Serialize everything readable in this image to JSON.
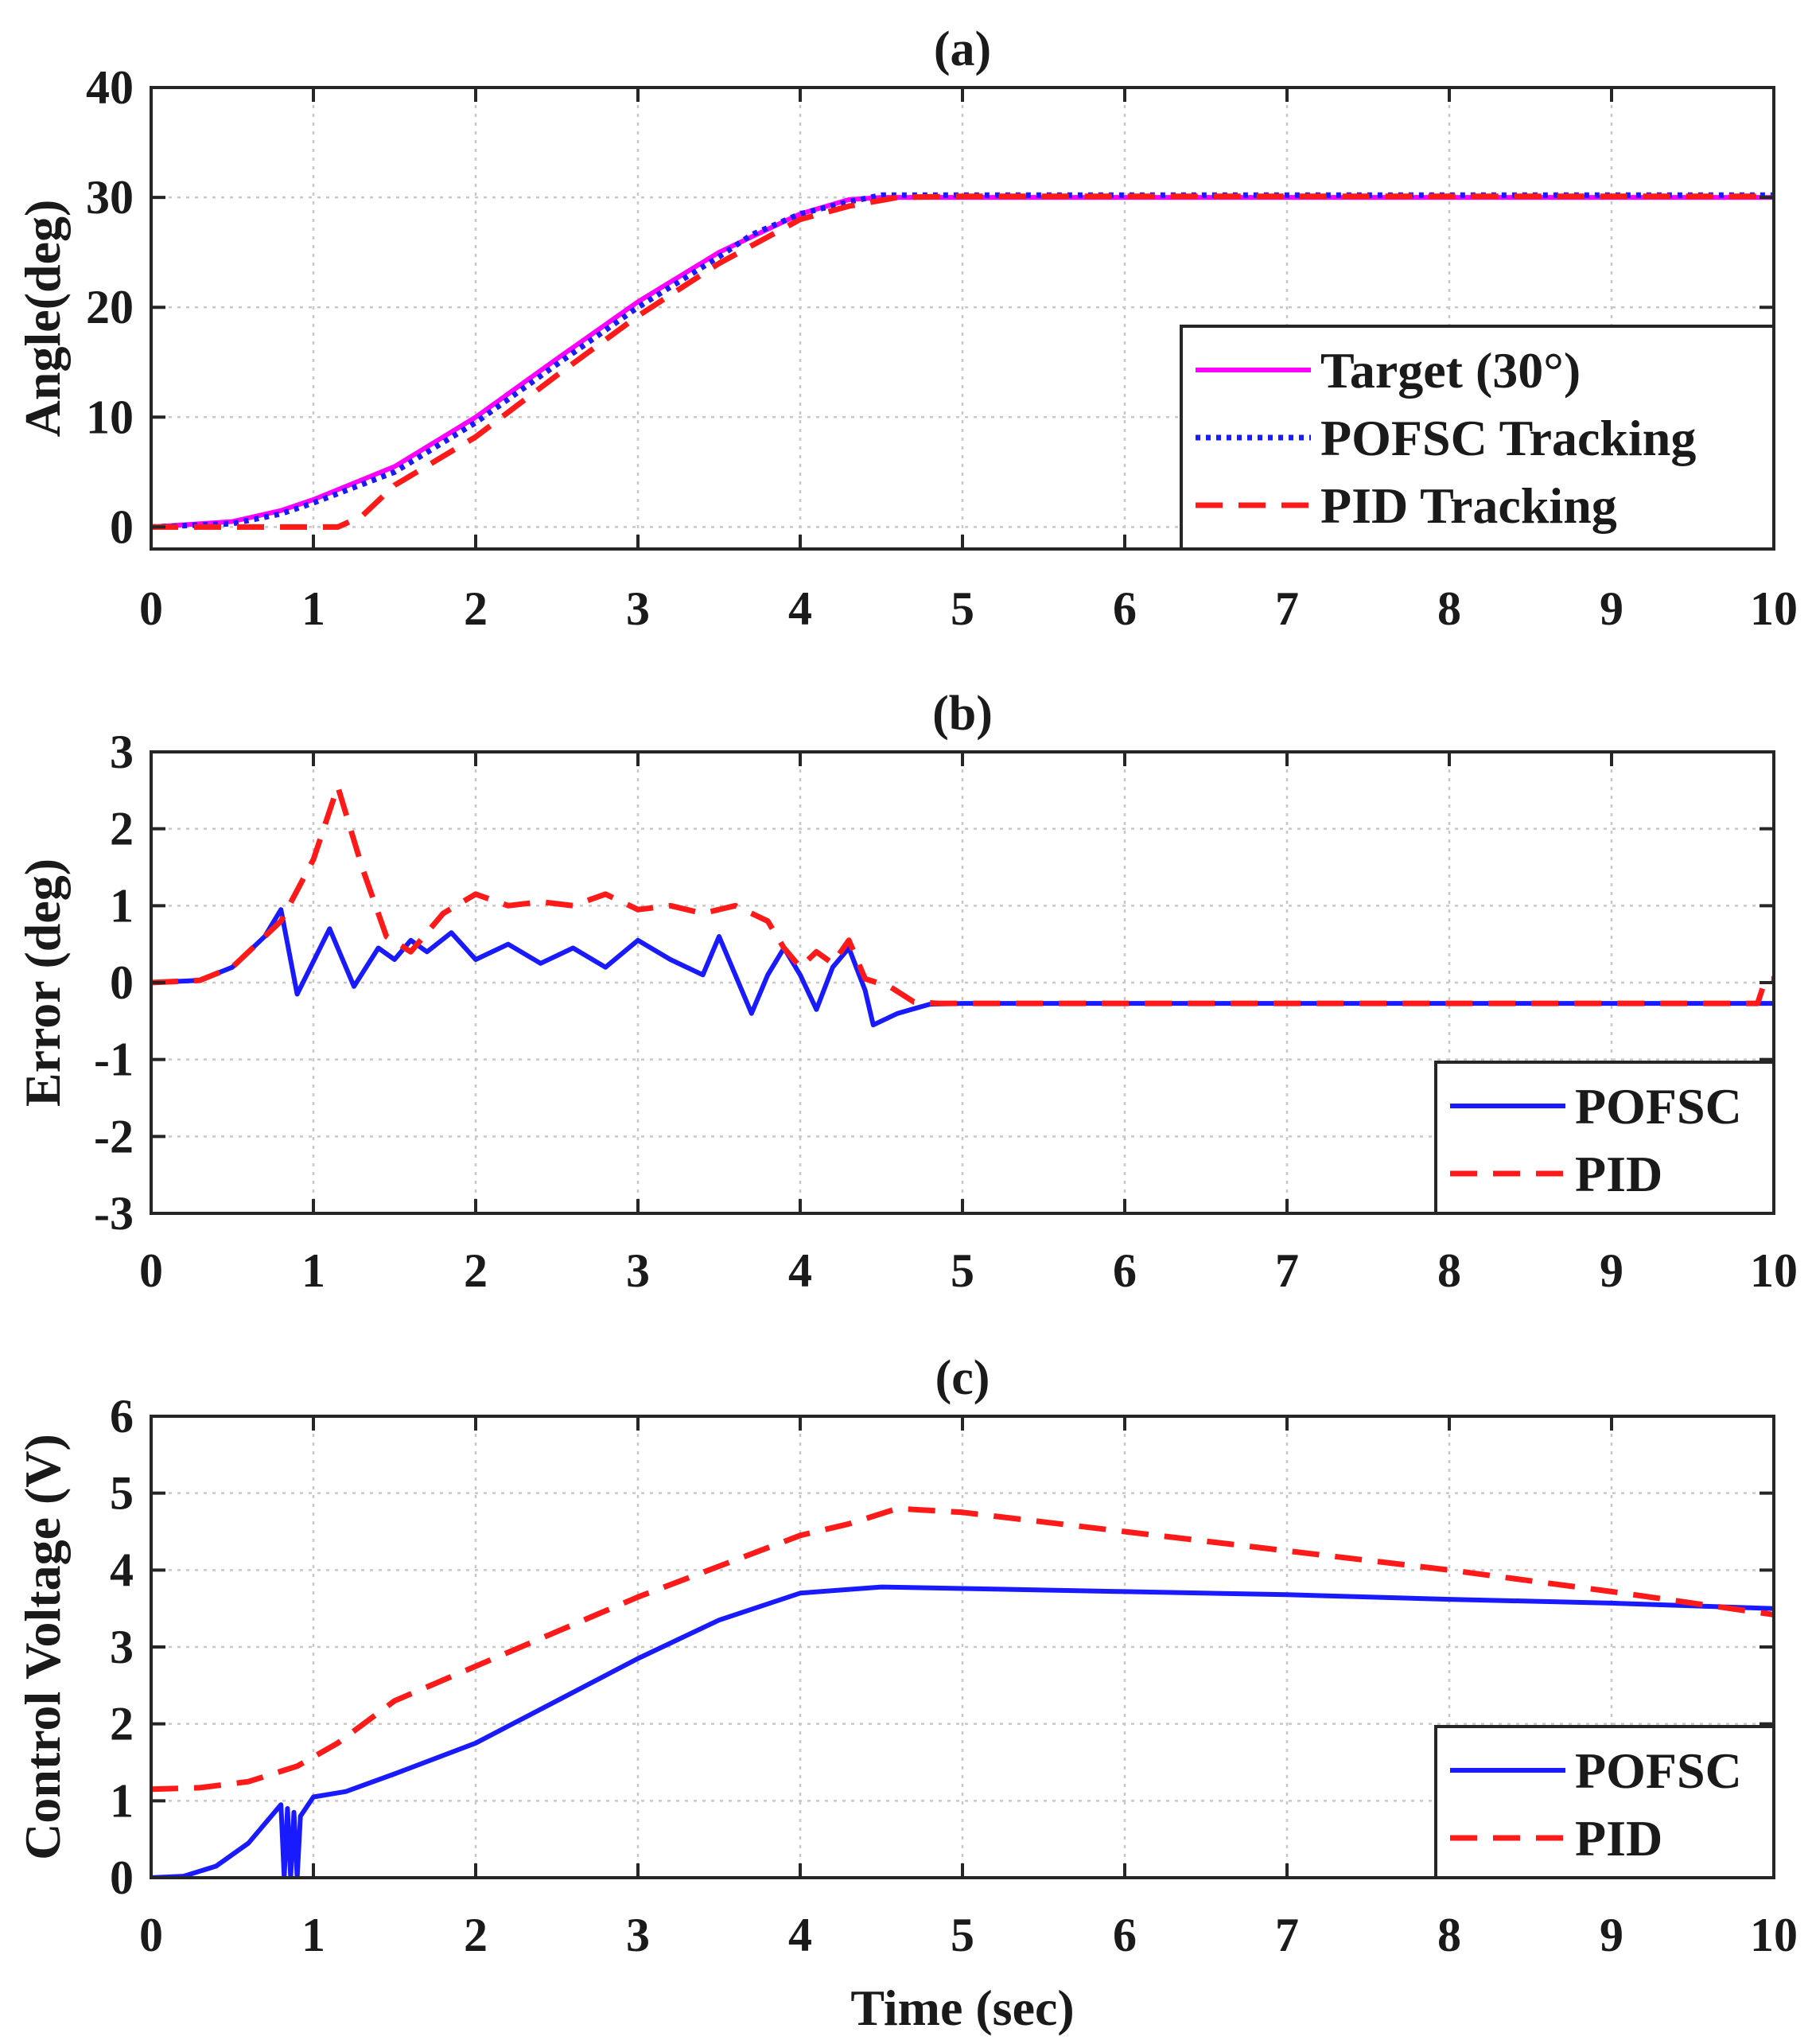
{
  "chart_data": [
    {
      "type": "line",
      "title": "(a)",
      "xlabel": "",
      "ylabel": "Angle(deg)",
      "xlim": [
        0,
        10
      ],
      "ylim": [
        -2,
        40
      ],
      "xticks": [
        "0",
        "1",
        "2",
        "3",
        "4",
        "5",
        "6",
        "7",
        "8",
        "9",
        "10"
      ],
      "yticks": [
        "0",
        "10",
        "20",
        "30",
        "40"
      ],
      "grid": true,
      "legend_placement": "lower-right",
      "series": [
        {
          "name": "Target (30°)",
          "color": "#ff00ff",
          "style": "solid",
          "x": [
            0,
            0.5,
            0.8,
            1.0,
            1.5,
            2.0,
            2.5,
            3.0,
            3.5,
            4.0,
            4.3,
            4.5,
            5,
            6,
            7,
            8,
            9,
            10
          ],
          "y": [
            0,
            0.5,
            1.5,
            2.5,
            5.5,
            10,
            15.3,
            20.5,
            25,
            28.5,
            29.8,
            30,
            30,
            30,
            30,
            30,
            30,
            30
          ]
        },
        {
          "name": "POFSC Tracking",
          "color": "#1a1aff",
          "style": "dotted",
          "x": [
            0,
            0.5,
            0.8,
            1.0,
            1.5,
            2.0,
            2.5,
            3.0,
            3.5,
            3.7,
            4.0,
            4.3,
            4.5,
            4.7,
            5,
            6,
            7,
            8,
            9,
            10
          ],
          "y": [
            0,
            0.3,
            1.2,
            2.2,
            5.0,
            9.5,
            14.8,
            20.0,
            24.6,
            26.6,
            28.5,
            29.6,
            30.2,
            30.2,
            30.2,
            30.2,
            30.2,
            30.2,
            30.2,
            30.2
          ]
        },
        {
          "name": "PID Tracking",
          "color": "#ff1a1a",
          "style": "dashed",
          "x": [
            0,
            0.8,
            1.15,
            1.3,
            1.5,
            2.0,
            2.5,
            3.0,
            3.5,
            4.0,
            4.3,
            4.6,
            5,
            6,
            7,
            8,
            9,
            10
          ],
          "y": [
            0,
            0,
            0,
            1.0,
            3.8,
            8.2,
            13.8,
            19.2,
            24.0,
            28.0,
            29.2,
            30.0,
            30.1,
            30.1,
            30.1,
            30.1,
            30.1,
            30.1
          ]
        }
      ]
    },
    {
      "type": "line",
      "title": "(b)",
      "xlabel": "",
      "ylabel": "Error (deg)",
      "xlim": [
        0,
        10
      ],
      "ylim": [
        -3,
        3
      ],
      "xticks": [
        "0",
        "1",
        "2",
        "3",
        "4",
        "5",
        "6",
        "7",
        "8",
        "9",
        "10"
      ],
      "yticks": [
        "-3",
        "-2",
        "-1",
        "0",
        "1",
        "2",
        "3"
      ],
      "grid": true,
      "legend_placement": "lower-right",
      "series": [
        {
          "name": "POFSC",
          "color": "#1a1aff",
          "style": "solid",
          "x": [
            0,
            0.3,
            0.5,
            0.7,
            0.8,
            0.9,
            1.1,
            1.25,
            1.4,
            1.5,
            1.6,
            1.7,
            1.85,
            2.0,
            2.2,
            2.4,
            2.6,
            2.8,
            3.0,
            3.2,
            3.4,
            3.5,
            3.6,
            3.7,
            3.8,
            3.9,
            4.0,
            4.1,
            4.2,
            4.3,
            4.4,
            4.45,
            4.6,
            4.8,
            5,
            6,
            7,
            8,
            9,
            10
          ],
          "y": [
            0,
            0.03,
            0.2,
            0.6,
            0.95,
            -0.15,
            0.7,
            -0.05,
            0.45,
            0.3,
            0.55,
            0.4,
            0.65,
            0.3,
            0.5,
            0.25,
            0.45,
            0.2,
            0.55,
            0.3,
            0.1,
            0.6,
            0.1,
            -0.4,
            0.1,
            0.45,
            0.1,
            -0.35,
            0.2,
            0.45,
            -0.1,
            -0.55,
            -0.4,
            -0.28,
            -0.27,
            -0.27,
            -0.27,
            -0.27,
            -0.27,
            -0.27
          ]
        },
        {
          "name": "PID",
          "color": "#ff1a1a",
          "style": "dashed",
          "x": [
            0,
            0.3,
            0.5,
            0.8,
            1.0,
            1.15,
            1.3,
            1.45,
            1.6,
            1.8,
            2.0,
            2.2,
            2.4,
            2.6,
            2.8,
            3.0,
            3.2,
            3.4,
            3.6,
            3.8,
            3.9,
            4.0,
            4.1,
            4.2,
            4.3,
            4.4,
            4.55,
            4.7,
            4.85,
            5,
            6,
            7,
            8,
            9,
            9.9,
            9.95,
            10
          ],
          "y": [
            0,
            0.03,
            0.2,
            0.8,
            1.6,
            2.55,
            1.5,
            0.6,
            0.4,
            0.9,
            1.15,
            1.0,
            1.05,
            1.0,
            1.15,
            0.95,
            1.0,
            0.9,
            1.0,
            0.8,
            0.45,
            0.2,
            0.4,
            0.25,
            0.55,
            0.05,
            -0.05,
            -0.25,
            -0.27,
            -0.27,
            -0.27,
            -0.27,
            -0.27,
            -0.27,
            -0.27,
            0.05,
            0.05
          ]
        }
      ]
    },
    {
      "type": "line",
      "title": "(c)",
      "xlabel": "Time (sec)",
      "ylabel": "Control Voltage (V)",
      "xlim": [
        0,
        10
      ],
      "ylim": [
        0,
        6
      ],
      "xticks": [
        "0",
        "1",
        "2",
        "3",
        "4",
        "5",
        "6",
        "7",
        "8",
        "9",
        "10"
      ],
      "yticks": [
        "0",
        "1",
        "2",
        "3",
        "4",
        "5",
        "6"
      ],
      "grid": true,
      "legend_placement": "lower-right",
      "series": [
        {
          "name": "POFSC",
          "color": "#1a1aff",
          "style": "solid",
          "x": [
            0,
            0.2,
            0.4,
            0.6,
            0.8,
            0.82,
            0.84,
            0.86,
            0.88,
            0.9,
            0.92,
            1.0,
            1.2,
            1.5,
            2.0,
            2.5,
            3.0,
            3.5,
            4.0,
            4.5,
            5,
            6,
            7,
            8,
            9,
            10
          ],
          "y": [
            0,
            0.02,
            0.15,
            0.45,
            0.95,
            0.0,
            0.9,
            0.0,
            0.85,
            0.0,
            0.8,
            1.05,
            1.12,
            1.35,
            1.75,
            2.3,
            2.85,
            3.35,
            3.7,
            3.78,
            3.76,
            3.72,
            3.68,
            3.62,
            3.57,
            3.5
          ]
        },
        {
          "name": "PID",
          "color": "#ff1a1a",
          "style": "dashed",
          "x": [
            0,
            0.3,
            0.6,
            0.9,
            1.15,
            1.5,
            2.0,
            2.5,
            3.0,
            3.5,
            4.0,
            4.3,
            4.6,
            5,
            6,
            7,
            8,
            9,
            9.9,
            10
          ],
          "y": [
            1.15,
            1.17,
            1.25,
            1.45,
            1.75,
            2.3,
            2.75,
            3.2,
            3.65,
            4.05,
            4.45,
            4.6,
            4.8,
            4.75,
            4.5,
            4.25,
            4.0,
            3.72,
            3.45,
            3.42
          ]
        }
      ]
    }
  ]
}
